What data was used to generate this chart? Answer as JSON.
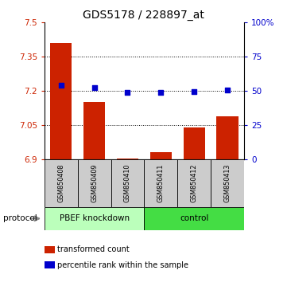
{
  "title": "GDS5178 / 228897_at",
  "samples": [
    "GSM850408",
    "GSM850409",
    "GSM850410",
    "GSM850411",
    "GSM850412",
    "GSM850413"
  ],
  "bar_values": [
    7.41,
    7.15,
    6.905,
    6.93,
    7.04,
    7.09
  ],
  "scatter_values": [
    7.225,
    7.215,
    7.195,
    7.193,
    7.198,
    7.205
  ],
  "y_min": 6.9,
  "y_max": 7.5,
  "y_ticks": [
    6.9,
    7.05,
    7.2,
    7.35,
    7.5
  ],
  "y_tick_labels": [
    "6.9",
    "7.05",
    "7.2",
    "7.35",
    "7.5"
  ],
  "right_y_ticks": [
    0,
    25,
    50,
    75,
    100
  ],
  "right_y_tick_labels": [
    "0",
    "25",
    "50",
    "75",
    "100%"
  ],
  "bar_color": "#cc2200",
  "scatter_color": "#0000cc",
  "bar_baseline": 6.9,
  "group1_label": "PBEF knockdown",
  "group2_label": "control",
  "protocol_label": "protocol",
  "group1_color": "#bbffbb",
  "group2_color": "#44dd44",
  "sample_bg_color": "#cccccc",
  "legend_bar_label": "transformed count",
  "legend_scatter_label": "percentile rank within the sample",
  "title_fontsize": 10
}
